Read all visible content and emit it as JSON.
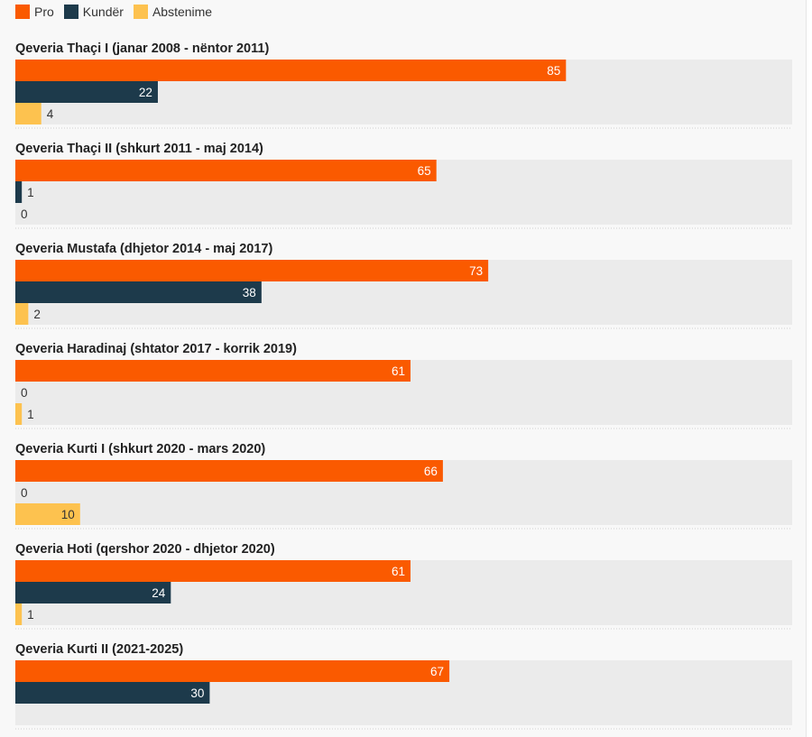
{
  "legend": [
    {
      "label": "Pro",
      "color": "#fa5a00"
    },
    {
      "label": "Kundër",
      "color": "#1d3a4b"
    },
    {
      "label": "Abstenime",
      "color": "#fdc24f"
    }
  ],
  "chart_data": {
    "type": "bar",
    "orientation": "horizontal",
    "title": "",
    "xlabel": "",
    "ylabel": "",
    "xlim": [
      0,
      120
    ],
    "grid": false,
    "legend_position": "top-left",
    "colors": {
      "Pro": "#fa5a00",
      "Kundër": "#1d3a4b",
      "Abstenime": "#fdc24f",
      "track": "#ebebeb"
    },
    "categories": [
      "Qeveria Thaçi I (janar 2008 - nëntor 2011)",
      "Qeveria Thaçi II (shkurt 2011 - maj 2014)",
      "Qeveria Mustafa (dhjetor 2014 - maj 2017)",
      "Qeveria Haradinaj (shtator 2017 - korrik 2019)",
      "Qeveria Kurti I (shkurt 2020 - mars 2020)",
      "Qeveria Hoti (qershor 2020 - dhjetor 2020)",
      "Qeveria Kurti II (2021-2025)"
    ],
    "series": [
      {
        "name": "Pro",
        "values": [
          85,
          65,
          73,
          61,
          66,
          61,
          67
        ]
      },
      {
        "name": "Kundër",
        "values": [
          22,
          1,
          38,
          0,
          0,
          24,
          30
        ]
      },
      {
        "name": "Abstenime",
        "values": [
          4,
          0,
          2,
          1,
          10,
          1,
          null
        ]
      }
    ]
  }
}
